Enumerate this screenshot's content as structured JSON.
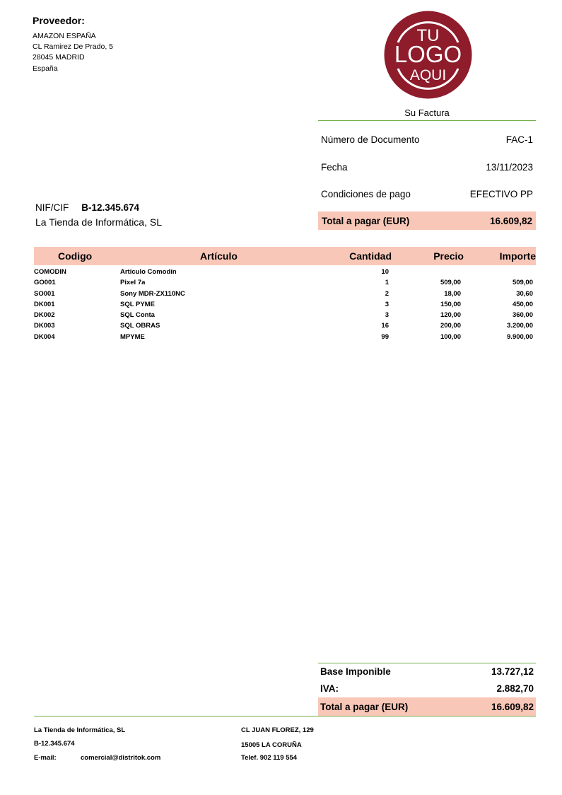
{
  "provider": {
    "title": "Proveedor:",
    "lines": [
      "AMAZON ESPAÑA",
      "CL Ramirez De Prado, 5",
      "28045 MADRID",
      "España"
    ]
  },
  "logo": {
    "text": [
      "TU",
      "LOGO",
      "AQUI"
    ],
    "color": "#8e1c2b"
  },
  "invoice": {
    "title": "Su Factura",
    "doc_label": "Número de Documento",
    "doc_value": "FAC-1",
    "date_label": "Fecha",
    "date_value": "13/11/2023",
    "pay_label": "Condiciones de pago",
    "pay_value": "EFECTIVO PP",
    "total_label": "Total a pagar (EUR)",
    "total_value": "16.609,82"
  },
  "client": {
    "nif_label": "NIF/CIF",
    "nif_value": "B-12.345.674",
    "name": "La Tienda de Informática, SL"
  },
  "table": {
    "headers": [
      "Codigo",
      "Artículo",
      "Cantidad",
      "Precio",
      "Importe"
    ],
    "rows": [
      [
        "COMODIN",
        "Articulo Comodín",
        "10",
        "",
        ""
      ],
      [
        "GO001",
        "Pixel 7a",
        "1",
        "509,00",
        "509,00"
      ],
      [
        "SO001",
        "Sony MDR-ZX110NC",
        "2",
        "18,00",
        "30,60"
      ],
      [
        "DK001",
        "SQL PYME",
        "3",
        "150,00",
        "450,00"
      ],
      [
        "DK002",
        "SQL Conta",
        "3",
        "120,00",
        "360,00"
      ],
      [
        "DK003",
        "SQL OBRAS",
        "16",
        "200,00",
        "3.200,00"
      ],
      [
        "DK004",
        "MPYME",
        "99",
        "100,00",
        "9.900,00"
      ]
    ]
  },
  "summary": {
    "base_label": "Base Imponible",
    "base_value": "13.727,12",
    "iva_label": "IVA:",
    "iva_value": "2.882,70",
    "total_label": "Total a pagar (EUR)",
    "total_value": "16.609,82"
  },
  "footer": {
    "company": "La Tienda de Informática, SL",
    "nif": "B-12.345.674",
    "email_label": "E-mail:",
    "email": "comercial@distritok.com",
    "address": "CL JUAN FLOREZ, 129",
    "city": "15005 LA CORUÑA",
    "phone": "Telef. 902 119 554"
  },
  "colors": {
    "accent_pink": "#f8c7b8",
    "line_green": "#70ad47"
  }
}
